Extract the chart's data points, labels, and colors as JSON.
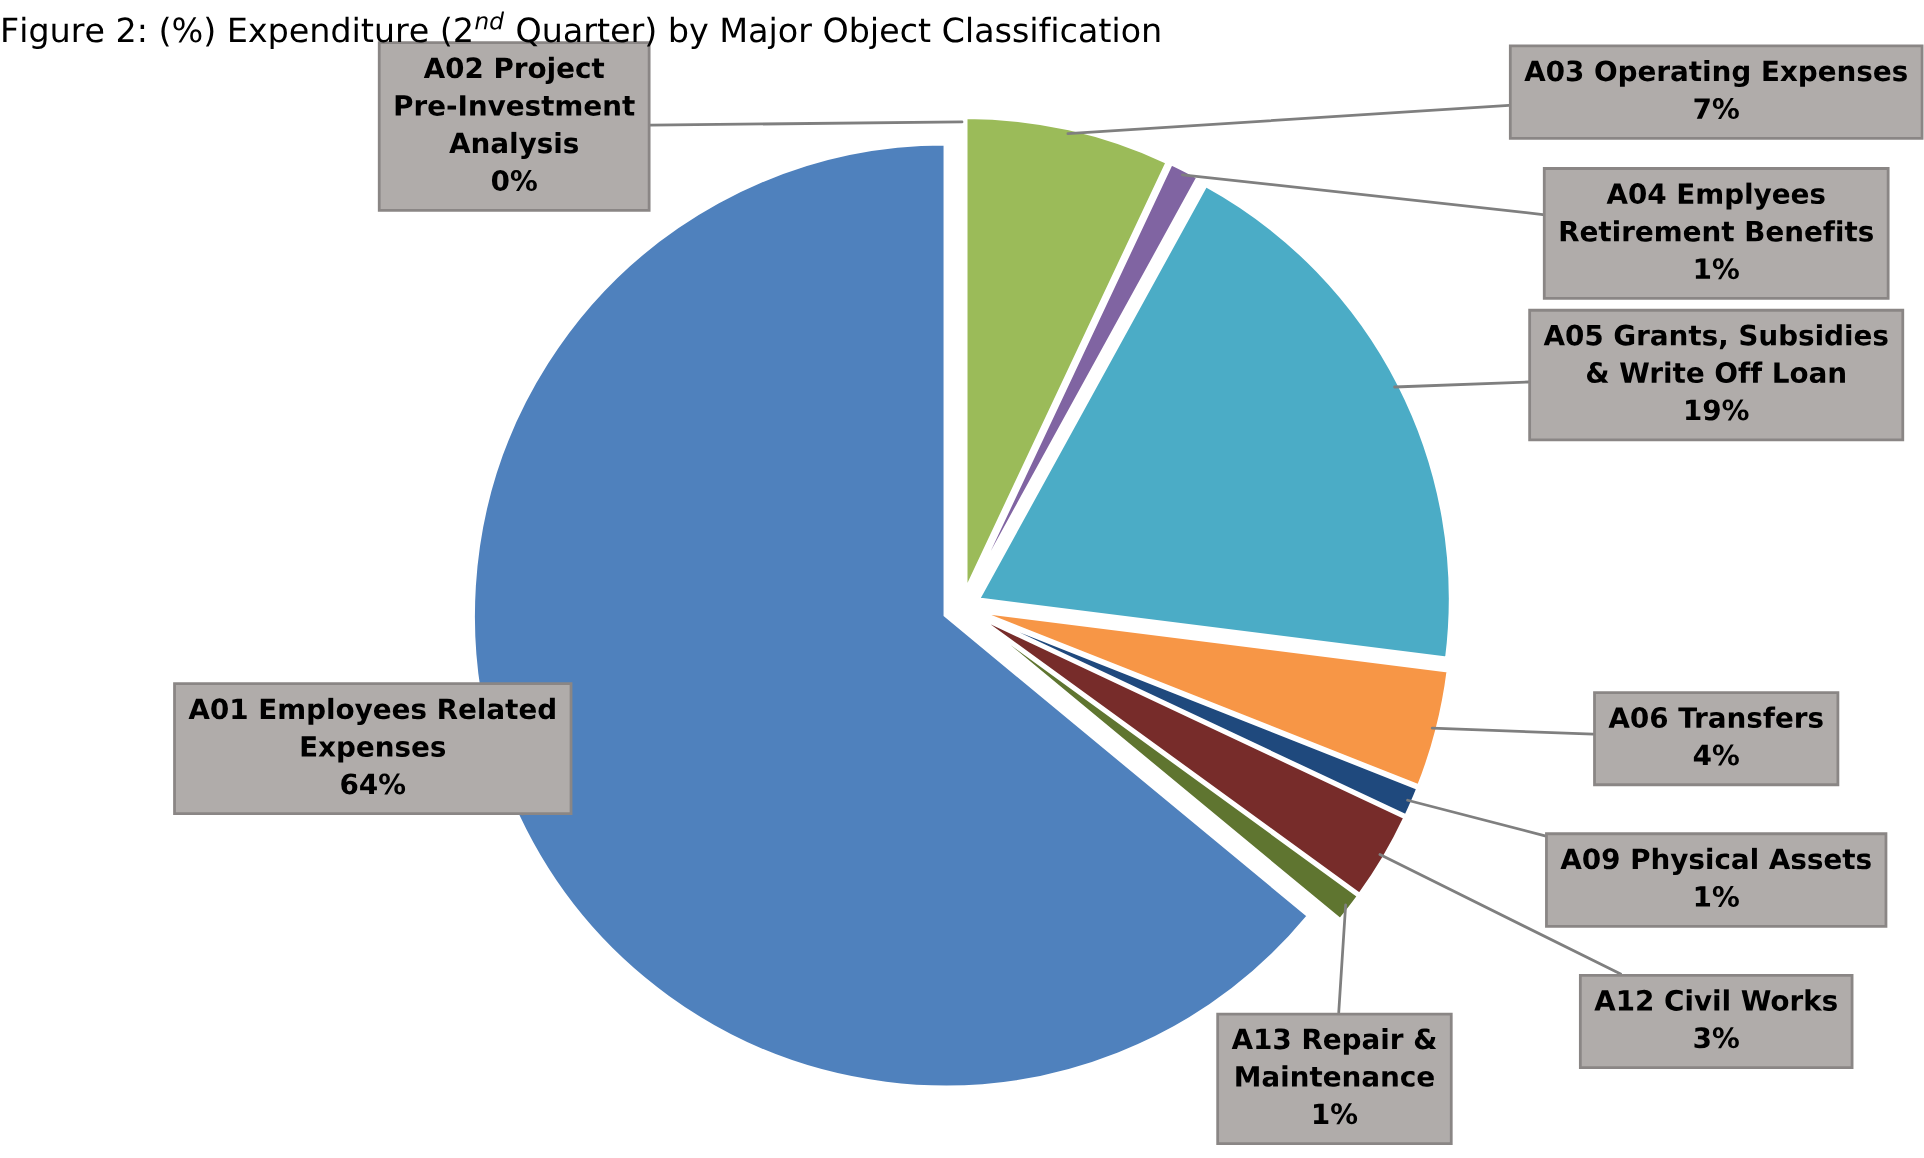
{
  "chart_data": {
    "type": "pie",
    "title": "Figure 2: (%) Expenditure (2$^{nd}$ Quarter) by Major Object Classification",
    "categories": [
      "A01 Employees Related Expenses",
      "A02 Project Pre-Investment Analysis",
      "A03 Operating Expenses",
      "A04 Emplyees Retirement Benefits",
      "A05 Grants, Subsidies & Write Off Loan",
      "A06 Transfers",
      "A09 Physical Assets",
      "A12 Civil Works",
      "A13 Repair & Maintenance"
    ],
    "values": [
      64,
      0,
      7,
      1,
      19,
      4,
      1,
      3,
      1
    ],
    "value_labels": [
      "64%",
      "0%",
      "7%",
      "1%",
      "19%",
      "4%",
      "1%",
      "3%",
      "1%"
    ],
    "colors": [
      "#4f81bd",
      "#c0504d",
      "#9bbb59",
      "#8064a2",
      "#4bacc6",
      "#f79646",
      "#1f497d",
      "#772c2a",
      "#5f7530"
    ],
    "legend": false
  }
}
